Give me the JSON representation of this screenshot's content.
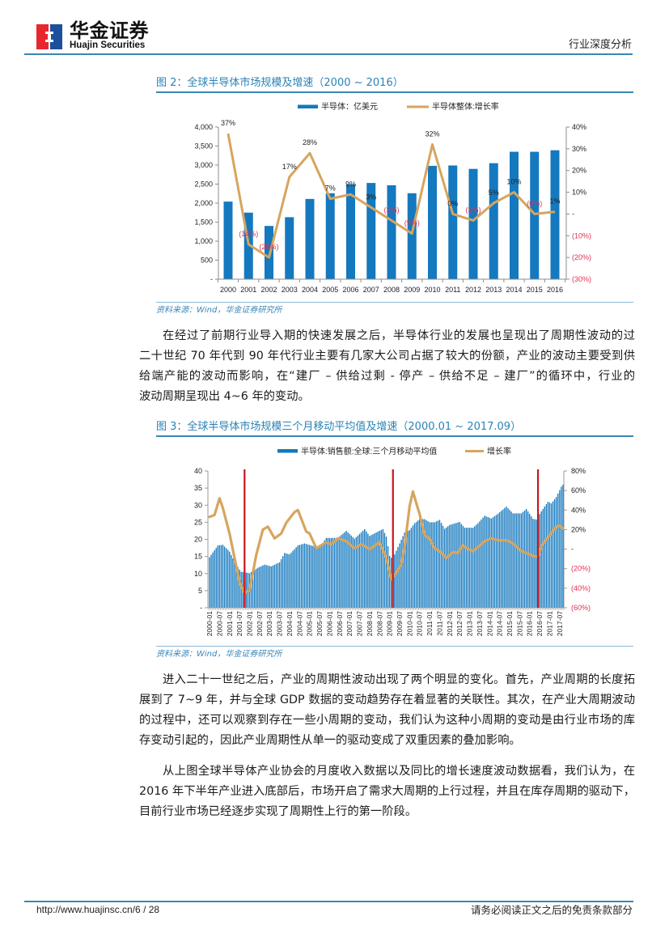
{
  "header": {
    "brand_cn": "华金证券",
    "brand_en": "Huajin Securities",
    "report_type": "行业深度分析",
    "logo_colors": {
      "left": "#e8262d",
      "right": "#1c4f9c"
    }
  },
  "figures": [
    {
      "title": "图 2：全球半导体市场规模及增速（2000 ~ 2016）",
      "source": "资料来源：Wind，华金证券研究所"
    },
    {
      "title": "图 3：全球半导体市场规模三个月移动平均值及增速（2000.01 ~ 2017.09）",
      "source": "资料来源：Wind，华金证券研究所"
    }
  ],
  "body": {
    "paragraphs": [
      {
        "lines": [
          "在经过了前期行业导入期的快速发展之后，半导体行业的发展也呈现出了周期性波动的过程，",
          "二十世纪 70 年代到 90 年代行业主要有几家大公司占据了较大的份额，产业的波动主要受到供",
          "给端产能的波动而影响，在“建厂 – 供给过剩 - 停产 – 供给不足 – 建厂”的循环中，行业的",
          "波动周期呈现出 4~6 年的变动。"
        ]
      },
      {
        "lines": [
          "进入二十一世纪之后，产业的周期性波动出现了两个明显的变化。首先，产业周期的长度拓",
          "展到了 7~9 年，并与全球 GDP 数据的变动趋势存在着显著的关联性。其次，在产业大周期波动",
          "的过程中，还可以观察到存在一些小周期的变动，我们认为这种小周期的变动是由行业市场的库",
          "存变动引起的，因此产业周期性从单一的驱动变成了双重因素的叠加影响。"
        ]
      },
      {
        "lines": [
          "从上图全球半导体产业协会的月度收入数据以及同比的增长速度波动数据看，我们认为，在",
          "2016 年下半年产业进入底部后，市场开启了需求大周期的上行过程，并且在库存周期的驱动下，",
          "目前行业市场已经逐步实现了周期性上行的第一阶段。"
        ]
      }
    ]
  },
  "footer": {
    "url_page": "http://www.huajinsc.cn/6 / 28",
    "disclaimer": "请务必阅读正文之后的免责条款部分"
  },
  "colors": {
    "accent": "#2a82b5",
    "rule": "#3a86b4",
    "bar": "#1479bf",
    "line": "#d6a55f",
    "marker": "#c8161d",
    "negative": "#e0304e"
  },
  "chart_data": [
    {
      "type": "bar",
      "title": "图 2：全球半导体市场规模及增速（2000 ~ 2016）",
      "categories": [
        "2000",
        "2001",
        "2002",
        "2003",
        "2004",
        "2005",
        "2006",
        "2007",
        "2008",
        "2009",
        "2010",
        "2011",
        "2012",
        "2013",
        "2014",
        "2015",
        "2016"
      ],
      "series": [
        {
          "name": "半导体：亿美元",
          "type": "bar",
          "axis": "left",
          "color": "#1479bf",
          "values": [
            2040,
            1750,
            1400,
            1630,
            2110,
            2260,
            2490,
            2530,
            2470,
            2260,
            2980,
            2990,
            2900,
            3050,
            3350,
            3350,
            3390
          ]
        },
        {
          "name": "半导体整体:增长率",
          "type": "line",
          "axis": "right",
          "color": "#d6a55f",
          "values": [
            37,
            -14,
            -20,
            17,
            28,
            7,
            9,
            3,
            -3,
            -9,
            32,
            0,
            -3,
            5,
            10,
            0,
            1
          ],
          "labels": [
            "37%",
            "(14%)",
            "(20%)",
            "17%",
            "28%",
            "7%",
            "9%",
            "3%",
            "(3%)",
            "(9%)",
            "32%",
            "0%",
            "(3%)",
            "5%",
            "10%",
            "(0%)",
            "1%"
          ]
        }
      ],
      "y_left": {
        "range": [
          0,
          4000
        ],
        "ticks": [
          "4,000",
          "3,500",
          "3,000",
          "2,500",
          "2,000",
          "1,500",
          "1,000",
          "500",
          "-"
        ]
      },
      "y_right": {
        "range": [
          -30,
          40
        ],
        "ticks": [
          "40%",
          "30%",
          "20%",
          "10%",
          "-",
          "(10%)",
          "(20%)",
          "(30%)"
        ]
      },
      "xlabel": "",
      "ylabel": "",
      "grid": false,
      "legend_position": "top"
    },
    {
      "type": "bar",
      "title": "图 3：全球半导体市场规模三个月移动平均值及增速（2000.01 ~ 2017.09）",
      "frequency": "monthly",
      "x_start": "2000-01",
      "x_end": "2017-09",
      "x_tick_labels": [
        "2000-01",
        "2000-07",
        "2001-01",
        "2001-07",
        "2002-01",
        "2002-07",
        "2003-01",
        "2003-07",
        "2004-01",
        "2004-07",
        "2005-01",
        "2005-07",
        "2006-01",
        "2006-07",
        "2007-01",
        "2007-07",
        "2008-01",
        "2008-07",
        "2009-01",
        "2009-07",
        "2010-01",
        "2010-07",
        "2011-01",
        "2011-07",
        "2012-01",
        "2012-07",
        "2013-01",
        "2013-07",
        "2014-01",
        "2014-07",
        "2015-01",
        "2015-07",
        "2016-01",
        "2016-07",
        "2017-01",
        "2017-07"
      ],
      "series": [
        {
          "name": "半导体:销售额:全球:三个月移动平均值",
          "type": "bar",
          "axis": "left",
          "color": "#1479bf",
          "points": [
            [
              "2000-01",
              14.8
            ],
            [
              "2000-06",
              18.2
            ],
            [
              "2000-09",
              18.4
            ],
            [
              "2001-01",
              16.4
            ],
            [
              "2001-05",
              12.5
            ],
            [
              "2001-08",
              10.5
            ],
            [
              "2001-10",
              10.4
            ],
            [
              "2002-01",
              10.1
            ],
            [
              "2002-06",
              11.7
            ],
            [
              "2002-10",
              12.6
            ],
            [
              "2003-02",
              12.1
            ],
            [
              "2003-07",
              13.3
            ],
            [
              "2003-10",
              16.0
            ],
            [
              "2004-01",
              15.6
            ],
            [
              "2004-06",
              18.2
            ],
            [
              "2004-10",
              18.8
            ],
            [
              "2005-02",
              18.2
            ],
            [
              "2005-07",
              17.6
            ],
            [
              "2005-11",
              20.4
            ],
            [
              "2006-06",
              20.4
            ],
            [
              "2006-11",
              22.5
            ],
            [
              "2007-04",
              20.2
            ],
            [
              "2007-10",
              23.0
            ],
            [
              "2008-01",
              21.0
            ],
            [
              "2008-09",
              23.0
            ],
            [
              "2008-11",
              20.8
            ],
            [
              "2009-01",
              15.2
            ],
            [
              "2009-03",
              14.0
            ],
            [
              "2009-04",
              15.6
            ],
            [
              "2009-10",
              22.0
            ],
            [
              "2010-01",
              22.7
            ],
            [
              "2010-04",
              24.7
            ],
            [
              "2010-07",
              25.9
            ],
            [
              "2010-10",
              25.9
            ],
            [
              "2011-01",
              25.0
            ],
            [
              "2011-04",
              25.0
            ],
            [
              "2011-07",
              25.7
            ],
            [
              "2011-10",
              23.1
            ],
            [
              "2012-01",
              24.2
            ],
            [
              "2012-07",
              25.1
            ],
            [
              "2012-10",
              23.4
            ],
            [
              "2013-03",
              23.4
            ],
            [
              "2013-06",
              24.7
            ],
            [
              "2013-10",
              26.9
            ],
            [
              "2014-02",
              26.1
            ],
            [
              "2014-06",
              27.5
            ],
            [
              "2014-11",
              29.6
            ],
            [
              "2015-03",
              27.6
            ],
            [
              "2015-08",
              27.6
            ],
            [
              "2015-11",
              28.9
            ],
            [
              "2016-03",
              26.0
            ],
            [
              "2016-05",
              25.8
            ],
            [
              "2016-08",
              28.2
            ],
            [
              "2016-12",
              31.0
            ],
            [
              "2017-02",
              30.5
            ],
            [
              "2017-05",
              32.4
            ],
            [
              "2017-08",
              35.4
            ],
            [
              "2017-09",
              36.0
            ]
          ]
        },
        {
          "name": "增长率",
          "type": "line",
          "axis": "right",
          "color": "#d6a55f",
          "points": [
            [
              "2000-01",
              33
            ],
            [
              "2000-04",
              35
            ],
            [
              "2000-07",
              52
            ],
            [
              "2000-09",
              42
            ],
            [
              "2001-01",
              16
            ],
            [
              "2001-04",
              -9
            ],
            [
              "2001-07",
              -34
            ],
            [
              "2001-10",
              -45
            ],
            [
              "2002-01",
              -42
            ],
            [
              "2002-05",
              -6
            ],
            [
              "2002-09",
              20
            ],
            [
              "2002-12",
              23
            ],
            [
              "2003-04",
              11
            ],
            [
              "2003-08",
              16
            ],
            [
              "2003-11",
              27
            ],
            [
              "2004-04",
              38
            ],
            [
              "2004-06",
              40
            ],
            [
              "2004-11",
              18
            ],
            [
              "2005-01",
              16
            ],
            [
              "2005-05",
              1
            ],
            [
              "2005-07",
              3
            ],
            [
              "2005-11",
              7
            ],
            [
              "2006-02",
              5
            ],
            [
              "2006-06",
              11
            ],
            [
              "2006-11",
              8
            ],
            [
              "2007-04",
              1
            ],
            [
              "2007-08",
              5
            ],
            [
              "2008-01",
              0
            ],
            [
              "2008-07",
              7
            ],
            [
              "2008-11",
              -9
            ],
            [
              "2009-02",
              -31
            ],
            [
              "2009-05",
              -24
            ],
            [
              "2009-08",
              -16
            ],
            [
              "2009-10",
              2
            ],
            [
              "2010-01",
              44
            ],
            [
              "2010-03",
              59
            ],
            [
              "2010-05",
              47
            ],
            [
              "2010-07",
              36
            ],
            [
              "2010-10",
              14
            ],
            [
              "2011-01",
              11
            ],
            [
              "2011-04",
              1
            ],
            [
              "2011-07",
              -2
            ],
            [
              "2011-11",
              -9
            ],
            [
              "2012-03",
              -3
            ],
            [
              "2012-06",
              -4
            ],
            [
              "2012-09",
              4
            ],
            [
              "2012-12",
              0
            ],
            [
              "2013-03",
              -2
            ],
            [
              "2013-10",
              8
            ],
            [
              "2014-02",
              11
            ],
            [
              "2014-06",
              9
            ],
            [
              "2014-11",
              9
            ],
            [
              "2015-03",
              6
            ],
            [
              "2015-08",
              -2
            ],
            [
              "2015-11",
              -4
            ],
            [
              "2016-03",
              -7
            ],
            [
              "2016-06",
              -8
            ],
            [
              "2016-08",
              3
            ],
            [
              "2016-12",
              12
            ],
            [
              "2017-05",
              23
            ],
            [
              "2017-07",
              24
            ],
            [
              "2017-09",
              21
            ]
          ]
        }
      ],
      "markers": {
        "color": "#c8161d",
        "months": [
          "2001-10",
          "2009-03",
          "2016-06"
        ]
      },
      "y_left": {
        "range": [
          0,
          40
        ],
        "ticks": [
          "40",
          "35",
          "30",
          "25",
          "20",
          "15",
          "10",
          "5",
          "-"
        ]
      },
      "y_right": {
        "range": [
          -60,
          80
        ],
        "ticks": [
          "80%",
          "60%",
          "40%",
          "20%",
          "-",
          "(20%)",
          "(40%)",
          "(60%)"
        ]
      },
      "xlabel": "",
      "ylabel": "",
      "grid": false,
      "legend_position": "top"
    }
  ]
}
